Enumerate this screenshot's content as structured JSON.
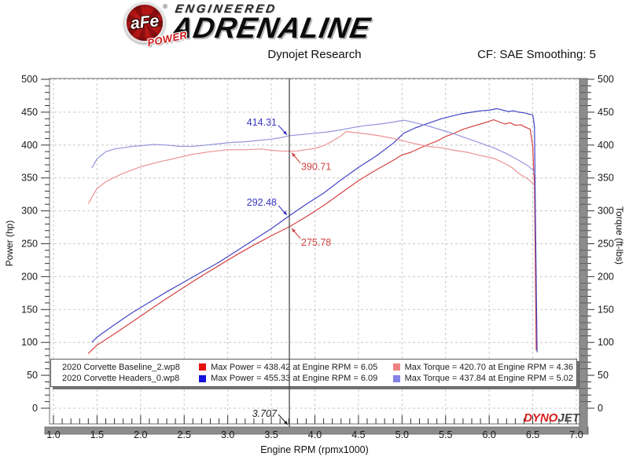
{
  "header": {
    "logo": {
      "circle_text": "aFe",
      "reg_mark": "®",
      "banner_text": "POWER",
      "line1": "ENGINEERED",
      "line2": "ADRENALINE"
    },
    "subtitle": "Dynojet Research",
    "cf_label": "CF: SAE Smoothing: 5"
  },
  "chart_data": {
    "type": "line",
    "title": "Dynojet Research",
    "xlabel": "Engine RPM (rpmx1000)",
    "ylabel_left": "Power (hp)",
    "ylabel_right": "Torque (ft-lbs)",
    "xlim": [
      1.0,
      7.0
    ],
    "ylim": [
      0,
      500
    ],
    "x_major": 0.5,
    "x_minor": 0.1,
    "y_major": 50,
    "y_minor": 10,
    "grid": true,
    "x_tick_labels": [
      "1.0",
      "1.5",
      "2.0",
      "2.5",
      "3.0",
      "3.5",
      "4.0",
      "4.5",
      "5.0",
      "5.5",
      "6.0",
      "6.5",
      "7.0"
    ],
    "y_tick_labels": [
      "0",
      "50",
      "100",
      "150",
      "200",
      "250",
      "300",
      "350",
      "400",
      "450",
      "500"
    ],
    "cursor": {
      "x": 3.707,
      "label": "3.707"
    },
    "annotations": [
      {
        "text": "414.31",
        "color": "#3838c0",
        "value": 414.31,
        "side": "left"
      },
      {
        "text": "390.71",
        "color": "#cf4343",
        "value": 390.71,
        "side": "right"
      },
      {
        "text": "292.48",
        "color": "#3838c0",
        "value": 292.48,
        "side": "left"
      },
      {
        "text": "275.78",
        "color": "#cf4343",
        "value": 275.78,
        "side": "right"
      }
    ],
    "series": [
      {
        "name": "Baseline Power (hp)",
        "color": "#d64242",
        "points": [
          [
            1.4,
            83
          ],
          [
            1.5,
            96
          ],
          [
            1.7,
            113
          ],
          [
            1.9,
            131
          ],
          [
            2.1,
            149
          ],
          [
            2.3,
            167
          ],
          [
            2.5,
            184
          ],
          [
            2.7,
            201
          ],
          [
            2.9,
            217
          ],
          [
            3.1,
            233
          ],
          [
            3.3,
            248
          ],
          [
            3.5,
            262
          ],
          [
            3.707,
            275.78
          ],
          [
            3.9,
            291
          ],
          [
            4.1,
            308
          ],
          [
            4.3,
            327
          ],
          [
            4.5,
            346
          ],
          [
            4.7,
            362
          ],
          [
            4.9,
            377
          ],
          [
            5.0,
            385
          ],
          [
            5.1,
            389
          ],
          [
            5.2,
            395
          ],
          [
            5.3,
            401
          ],
          [
            5.4,
            406
          ],
          [
            5.5,
            413
          ],
          [
            5.6,
            418
          ],
          [
            5.7,
            424
          ],
          [
            5.8,
            428
          ],
          [
            5.9,
            432
          ],
          [
            6.0,
            436
          ],
          [
            6.05,
            438.42
          ],
          [
            6.12,
            435
          ],
          [
            6.18,
            432
          ],
          [
            6.24,
            434
          ],
          [
            6.3,
            430
          ],
          [
            6.36,
            431
          ],
          [
            6.42,
            427
          ],
          [
            6.47,
            424
          ],
          [
            6.5,
            398
          ],
          [
            6.51,
            360
          ],
          [
            6.52,
            342
          ],
          [
            6.54,
            88
          ]
        ]
      },
      {
        "name": "Headers Power (hp)",
        "color": "#4444c6",
        "points": [
          [
            1.44,
            100
          ],
          [
            1.5,
            108
          ],
          [
            1.7,
            127
          ],
          [
            1.9,
            145
          ],
          [
            2.1,
            161
          ],
          [
            2.3,
            177
          ],
          [
            2.5,
            192
          ],
          [
            2.7,
            207
          ],
          [
            2.9,
            222
          ],
          [
            3.1,
            239
          ],
          [
            3.3,
            256
          ],
          [
            3.5,
            273
          ],
          [
            3.707,
            292.48
          ],
          [
            3.9,
            310
          ],
          [
            4.1,
            327
          ],
          [
            4.3,
            347
          ],
          [
            4.5,
            366
          ],
          [
            4.7,
            383
          ],
          [
            4.9,
            403
          ],
          [
            5.02,
            418
          ],
          [
            5.15,
            426
          ],
          [
            5.3,
            433
          ],
          [
            5.45,
            440
          ],
          [
            5.6,
            445
          ],
          [
            5.7,
            448
          ],
          [
            5.8,
            450
          ],
          [
            5.9,
            452
          ],
          [
            6.0,
            453
          ],
          [
            6.09,
            455.33
          ],
          [
            6.16,
            453
          ],
          [
            6.22,
            451
          ],
          [
            6.28,
            452
          ],
          [
            6.34,
            450
          ],
          [
            6.4,
            449
          ],
          [
            6.46,
            447
          ],
          [
            6.5,
            446
          ],
          [
            6.52,
            428
          ],
          [
            6.53,
            300
          ],
          [
            6.55,
            85
          ]
        ]
      },
      {
        "name": "Baseline Torque (ft-lbs)",
        "color": "#ec9393",
        "points": [
          [
            1.4,
            311
          ],
          [
            1.5,
            334
          ],
          [
            1.6,
            344
          ],
          [
            1.7,
            351
          ],
          [
            1.8,
            357
          ],
          [
            1.9,
            362
          ],
          [
            2.0,
            367
          ],
          [
            2.2,
            374
          ],
          [
            2.4,
            380
          ],
          [
            2.6,
            386
          ],
          [
            2.8,
            390
          ],
          [
            3.0,
            393
          ],
          [
            3.2,
            393
          ],
          [
            3.4,
            394
          ],
          [
            3.5,
            392
          ],
          [
            3.6,
            391
          ],
          [
            3.707,
            390.71
          ],
          [
            3.8,
            391
          ],
          [
            3.9,
            393
          ],
          [
            4.0,
            395
          ],
          [
            4.1,
            399
          ],
          [
            4.2,
            406
          ],
          [
            4.3,
            414
          ],
          [
            4.36,
            420.7
          ],
          [
            4.45,
            419
          ],
          [
            4.6,
            417
          ],
          [
            4.75,
            414
          ],
          [
            4.9,
            410
          ],
          [
            5.0,
            407
          ],
          [
            5.15,
            402
          ],
          [
            5.3,
            398
          ],
          [
            5.45,
            396
          ],
          [
            5.6,
            392
          ],
          [
            5.75,
            389
          ],
          [
            5.9,
            384
          ],
          [
            6.05,
            380
          ],
          [
            6.15,
            374
          ],
          [
            6.25,
            367
          ],
          [
            6.35,
            356
          ],
          [
            6.45,
            348
          ],
          [
            6.5,
            342
          ],
          [
            6.52,
            338
          ]
        ]
      },
      {
        "name": "Headers Torque (ft-lbs)",
        "color": "#9595dc",
        "points": [
          [
            1.44,
            365
          ],
          [
            1.5,
            379
          ],
          [
            1.6,
            390
          ],
          [
            1.7,
            394
          ],
          [
            1.8,
            396
          ],
          [
            1.9,
            398
          ],
          [
            2.0,
            399
          ],
          [
            2.15,
            401
          ],
          [
            2.3,
            400
          ],
          [
            2.45,
            398
          ],
          [
            2.6,
            398
          ],
          [
            2.75,
            400
          ],
          [
            2.9,
            402
          ],
          [
            3.05,
            404
          ],
          [
            3.2,
            405
          ],
          [
            3.35,
            407
          ],
          [
            3.5,
            409
          ],
          [
            3.6,
            411
          ],
          [
            3.707,
            414.31
          ],
          [
            3.85,
            416
          ],
          [
            4.0,
            418
          ],
          [
            4.15,
            420
          ],
          [
            4.3,
            423
          ],
          [
            4.45,
            427
          ],
          [
            4.6,
            430
          ],
          [
            4.75,
            432
          ],
          [
            4.9,
            435
          ],
          [
            5.02,
            437.84
          ],
          [
            5.15,
            434
          ],
          [
            5.3,
            429
          ],
          [
            5.45,
            423
          ],
          [
            5.6,
            417
          ],
          [
            5.75,
            410
          ],
          [
            5.9,
            403
          ],
          [
            6.05,
            396
          ],
          [
            6.2,
            387
          ],
          [
            6.35,
            376
          ],
          [
            6.45,
            368
          ],
          [
            6.5,
            362
          ],
          [
            6.53,
            357
          ]
        ]
      }
    ]
  },
  "legend": {
    "rows": [
      {
        "file": "2020 Corvette Baseline_2.wp8",
        "power_color": "#e51212",
        "power_text": "Max Power = 438.42 at Engine RPM = 6.05",
        "torque_color": "#ef8383",
        "torque_text": "Max Torque = 420.70 at Engine RPM = 4.36"
      },
      {
        "file": "2020 Corvette Headers_0.wp8",
        "power_color": "#1414dd",
        "power_text": "Max Power = 455.33 at Engine RPM = 6.09",
        "torque_color": "#8484e6",
        "torque_text": "Max Torque = 437.84 at Engine RPM = 5.02"
      }
    ]
  },
  "dynojet_logo": {
    "part1": "DYNO",
    "part2": "JET"
  },
  "colors": {
    "grid": "#c9c9c9",
    "frame": "#6f6f6f",
    "axis_bar": "#8c8c8c",
    "cursor": "#3a3a3a",
    "tick_text": "#1a1a1a"
  }
}
